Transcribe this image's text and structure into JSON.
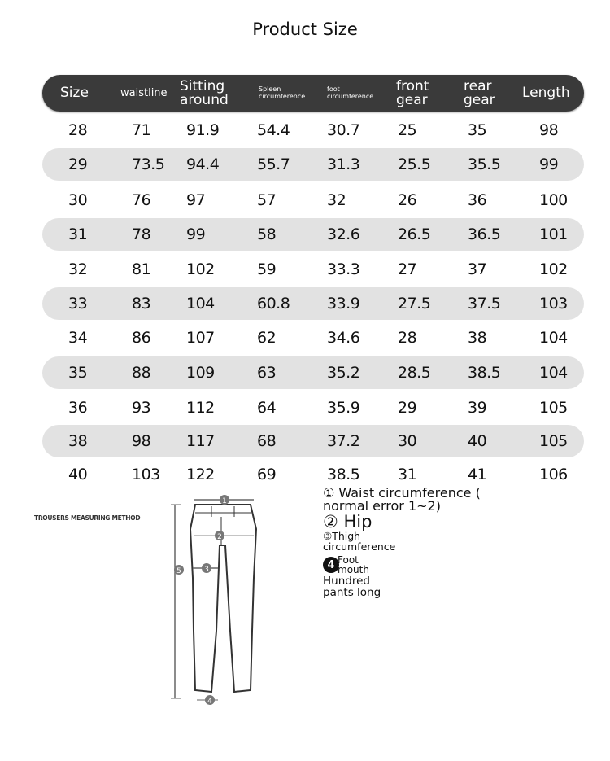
{
  "title": "Product Size",
  "columns": [
    "Size",
    "waistline",
    "Sitting around",
    "Spleen circumference",
    "foot circumference",
    "front gear",
    "rear gear",
    "Length"
  ],
  "rows": [
    [
      "28",
      "71",
      "91.9",
      "54.4",
      "30.7",
      "25",
      "35",
      "98"
    ],
    [
      "29",
      "73.5",
      "94.4",
      "55.7",
      "31.3",
      "25.5",
      "35.5",
      "99"
    ],
    [
      "30",
      "76",
      "97",
      "57",
      "32",
      "26",
      "36",
      "100"
    ],
    [
      "31",
      "78",
      "99",
      "58",
      "32.6",
      "26.5",
      "36.5",
      "101"
    ],
    [
      "32",
      "81",
      "102",
      "59",
      "33.3",
      "27",
      "37",
      "102"
    ],
    [
      "33",
      "83",
      "104",
      "60.8",
      "33.9",
      "27.5",
      "37.5",
      "103"
    ],
    [
      "34",
      "86",
      "107",
      "62",
      "34.6",
      "28",
      "38",
      "104"
    ],
    [
      "35",
      "88",
      "109",
      "63",
      "35.2",
      "28.5",
      "38.5",
      "104"
    ],
    [
      "36",
      "93",
      "112",
      "64",
      "35.9",
      "29",
      "39",
      "105"
    ],
    [
      "38",
      "98",
      "117",
      "68",
      "37.2",
      "30",
      "40",
      "105"
    ],
    [
      "40",
      "103",
      "122",
      "69",
      "38.5",
      "31",
      "41",
      "106"
    ]
  ],
  "diagram": {
    "heading": "TROUSERS MEASURING METHOD",
    "markers": [
      "1",
      "2",
      "3",
      "4",
      "5"
    ]
  },
  "legend": {
    "waist_line1": "① Waist circumference (",
    "waist_line2": "normal error 1~2)",
    "hip": "② Hip",
    "thigh_line1": "③Thigh",
    "thigh_line2": "circumference",
    "foot_num": "4",
    "foot_line1": "Foot",
    "foot_line2": "mouth",
    "length_line1": "Hundred",
    "length_line2": "pants long"
  },
  "colors": {
    "header_bg": "#3a3a3a",
    "row_shade": "#e2e2e2"
  }
}
